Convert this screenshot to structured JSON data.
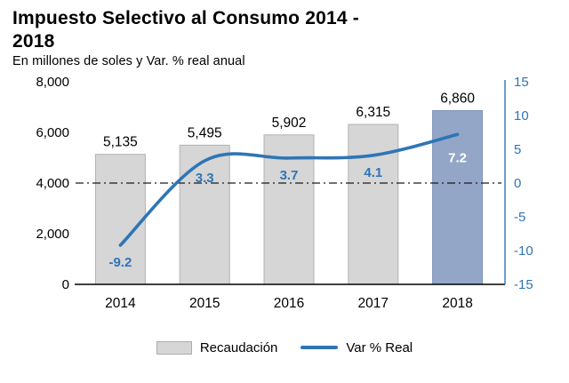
{
  "header": {
    "title": "Impuesto Selectivo al Consumo 2014 - 2018",
    "subtitle": "En millones de soles y Var. % real anual"
  },
  "chart_data": {
    "type": "bar+line combo",
    "categories": [
      "2014",
      "2015",
      "2016",
      "2017",
      "2018"
    ],
    "series": [
      {
        "name": "Recaudación",
        "type": "bar",
        "axis": "left",
        "values": [
          5135,
          5495,
          5902,
          6315,
          6860
        ],
        "labels": [
          "5,135",
          "5,495",
          "5,902",
          "6,315",
          "6,860"
        ]
      },
      {
        "name": "Var % Real",
        "type": "line",
        "axis": "right",
        "values": [
          -9.2,
          3.3,
          3.7,
          4.1,
          7.2
        ],
        "labels": [
          "-9.2",
          "3.3",
          "3.7",
          "4.1",
          "7.2"
        ]
      }
    ],
    "highlight_index": 4,
    "left_axis": {
      "min": 0,
      "max": 8000,
      "tick_values": [
        8000,
        6000,
        4000,
        2000,
        0
      ],
      "tick_labels": [
        "8,000",
        "6,000",
        "4,000",
        "2,000",
        "0"
      ]
    },
    "right_axis": {
      "min": -15,
      "max": 15,
      "tick_values": [
        15,
        10,
        5,
        0,
        -5,
        -10,
        -15
      ],
      "tick_labels": [
        "15",
        "10",
        "5",
        "0",
        "-5",
        "-10",
        "-15"
      ]
    },
    "zero_line": true,
    "grid": false,
    "legend_position": "bottom"
  },
  "legend": {
    "items": [
      {
        "label": "Recaudación",
        "swatch": "bar"
      },
      {
        "label": "Var % Real",
        "swatch": "line"
      }
    ]
  },
  "colors": {
    "bar": "#D6D6D6",
    "bar_border": "#B3B3B3",
    "bar_highlight": "#93A6C7",
    "bar_highlight_border": "#7E93B8",
    "line": "#2E75B6",
    "line_label": "#2E75B6",
    "line_label_highlight": "#FFFFFF",
    "axis_text": "#000000",
    "right_axis_text": "#2E75B6",
    "zero_line": "#1A1A1A",
    "x_axis_line": "#000000"
  }
}
